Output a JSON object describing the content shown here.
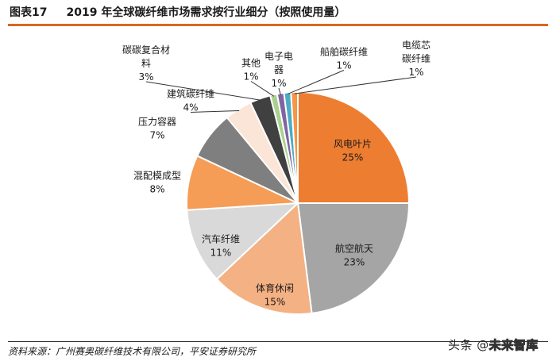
{
  "header": {
    "figure_no": "图表17",
    "title": "2019 年全球碳纤维市场需求按行业细分（按照使用量）"
  },
  "footer": {
    "source": "资料来源：广州赛奥碳纤维技术有限公司，平安证券研究所"
  },
  "watermark": {
    "prefix": "头条 @",
    "brand": "未来智库"
  },
  "chart_data": {
    "type": "pie",
    "title": "",
    "start": "12 o'clock, clockwise",
    "slices": [
      {
        "label": "风电叶片",
        "value": 25,
        "text": "25%",
        "color": "#ed7d31"
      },
      {
        "label": "航空航天",
        "value": 23,
        "text": "23%",
        "color": "#a5a5a5"
      },
      {
        "label": "体育休闲",
        "value": 15,
        "text": "15%",
        "color": "#f4b183"
      },
      {
        "label": "汽车纤维",
        "value": 11,
        "text": "11%",
        "color": "#d9d9d9"
      },
      {
        "label": "混配模成型",
        "value": 8,
        "text": "8%",
        "color": "#f59d56"
      },
      {
        "label": "压力容器",
        "value": 7,
        "text": "7%",
        "color": "#7f7f7f"
      },
      {
        "label": "建筑碳纤维",
        "value": 4,
        "text": "4%",
        "color": "#fbe5d6"
      },
      {
        "label": "碳碳复合材料",
        "value": 3,
        "text": "3%",
        "color": "#404040"
      },
      {
        "label": "其他",
        "value": 1,
        "text": "1%",
        "color": "#a9d18e"
      },
      {
        "label": "电子电器",
        "value": 1,
        "text": "1%",
        "color": "#8064a2"
      },
      {
        "label": "船舶碳纤维",
        "value": 1,
        "text": "1%",
        "color": "#4bacc6"
      },
      {
        "label": "电缆芯碳纤维",
        "value": 1,
        "text": "1%",
        "color": "#f79646"
      }
    ]
  }
}
